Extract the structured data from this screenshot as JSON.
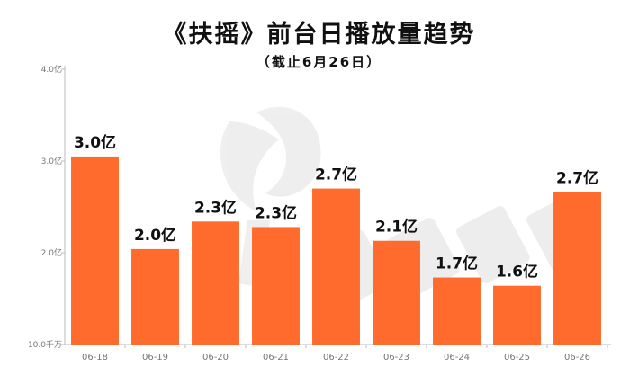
{
  "title": "《扶摇》前台日播放量趋势",
  "subtitle": "（截止6月26日）",
  "chart_data": {
    "type": "bar",
    "categories": [
      "06-18",
      "06-19",
      "06-20",
      "06-21",
      "06-22",
      "06-23",
      "06-24",
      "06-25",
      "06-26"
    ],
    "values": [
      3.05,
      2.04,
      2.34,
      2.28,
      2.7,
      2.13,
      1.73,
      1.64,
      2.66
    ],
    "data_labels": [
      "3.0亿",
      "2.0亿",
      "2.3亿",
      "2.3亿",
      "2.7亿",
      "2.1亿",
      "1.7亿",
      "1.6亿",
      "2.7亿"
    ],
    "y_ticks": [
      {
        "value": 1.0,
        "label": "10.0千万"
      },
      {
        "value": 2.0,
        "label": "2.0亿"
      },
      {
        "value": 3.0,
        "label": "3.0亿"
      },
      {
        "value": 4.0,
        "label": "4.0亿"
      }
    ],
    "ylim": [
      1.0,
      4.0
    ],
    "bar_color": "#FF6B2C",
    "grid": false
  }
}
